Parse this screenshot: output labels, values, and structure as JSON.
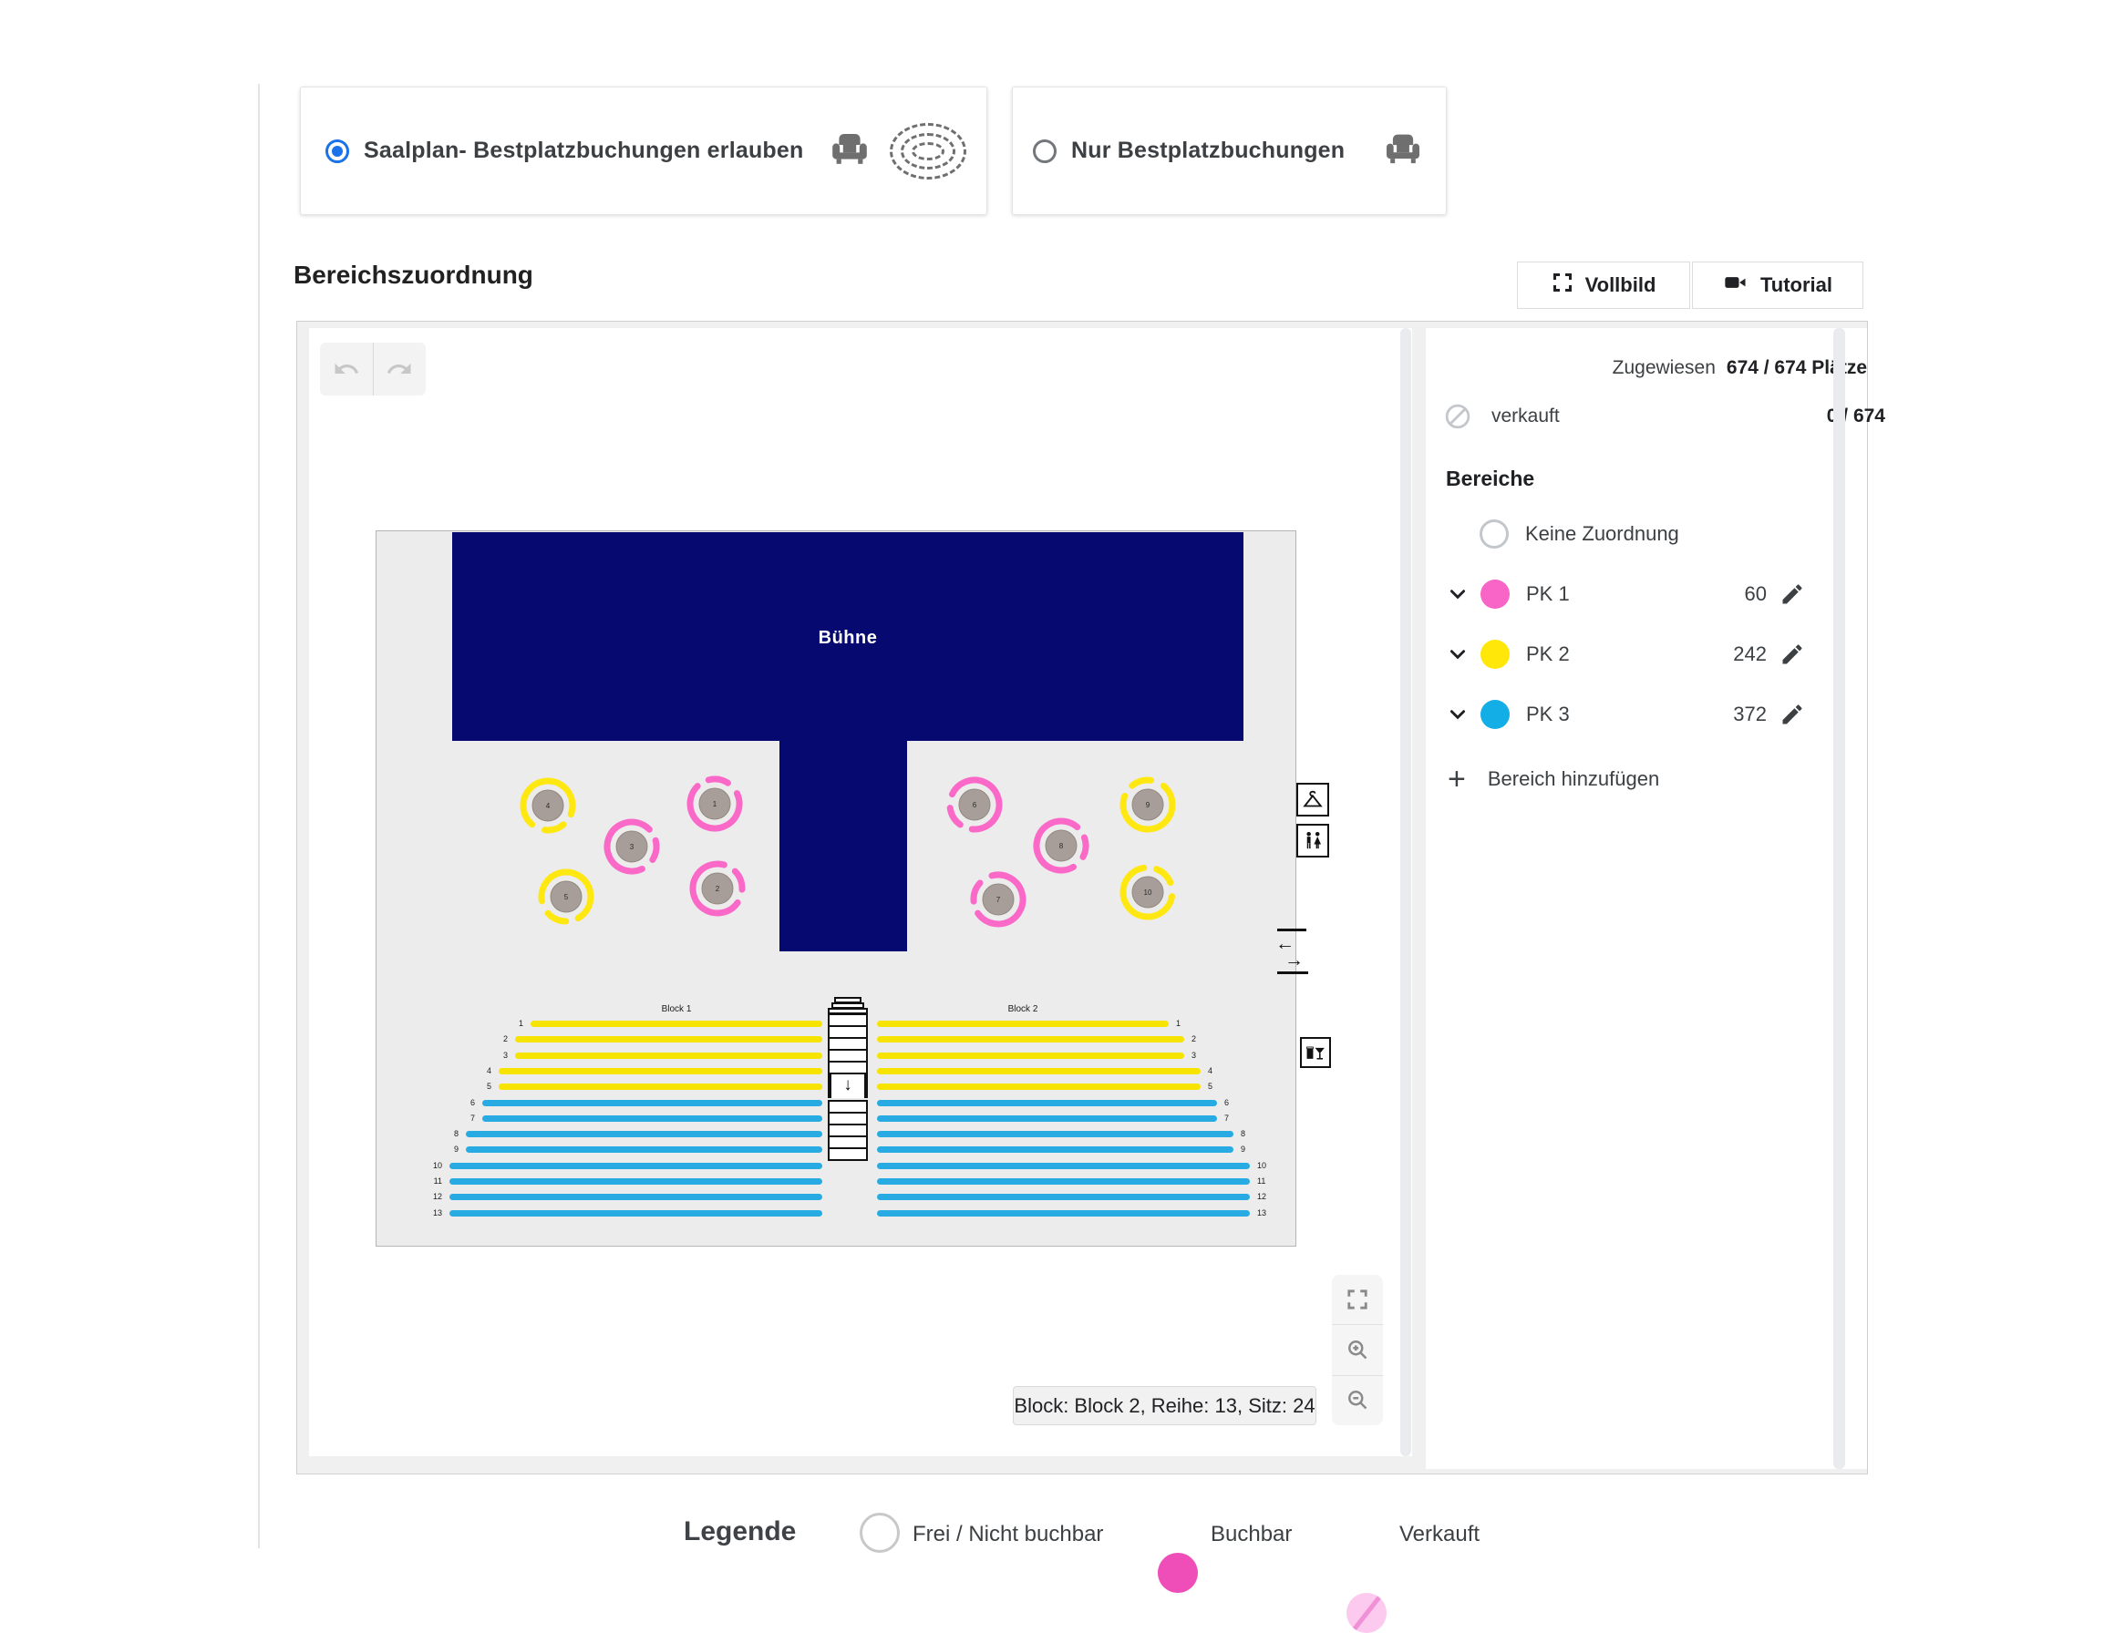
{
  "booking_modes": {
    "option1": {
      "label": "Saalplan- Bestplatzbuchungen erlauben",
      "selected": true
    },
    "option2": {
      "label": "Nur Bestplatzbuchungen",
      "selected": false
    }
  },
  "toolbar": {
    "heading": "Bereichszuordnung",
    "fullscreen_label": "Vollbild",
    "tutorial_label": "Tutorial"
  },
  "sidebar": {
    "assigned_label": "Zugewiesen",
    "assigned_value": "674 / 674 Plätze",
    "sold_label": "verkauft",
    "sold_value": "0 / 674",
    "areas_heading": "Bereiche",
    "no_assignment_label": "Keine Zuordnung",
    "areas": [
      {
        "name": "PK 1",
        "count": "60",
        "color": "#f964c7"
      },
      {
        "name": "PK 2",
        "count": "242",
        "color": "#ffe70a"
      },
      {
        "name": "PK 3",
        "count": "372",
        "color": "#14aee7"
      }
    ],
    "add_area_label": "Bereich hinzufügen"
  },
  "seatmap": {
    "stage_label": "Bühne",
    "blocks": [
      {
        "name": "Block 1"
      },
      {
        "name": "Block 2"
      }
    ],
    "rows": [
      {
        "number": "1",
        "zone": "PK 2",
        "color": "#f6e400"
      },
      {
        "number": "2",
        "zone": "PK 2",
        "color": "#f6e400"
      },
      {
        "number": "3",
        "zone": "PK 2",
        "color": "#f6e400"
      },
      {
        "number": "4",
        "zone": "PK 2",
        "color": "#f6e400"
      },
      {
        "number": "5",
        "zone": "PK 2",
        "color": "#f6e400"
      },
      {
        "number": "6",
        "zone": "PK 3",
        "color": "#28abe2"
      },
      {
        "number": "7",
        "zone": "PK 3",
        "color": "#28abe2"
      },
      {
        "number": "8",
        "zone": "PK 3",
        "color": "#28abe2"
      },
      {
        "number": "9",
        "zone": "PK 3",
        "color": "#28abe2"
      },
      {
        "number": "10",
        "zone": "PK 3",
        "color": "#28abe2"
      },
      {
        "number": "11",
        "zone": "PK 3",
        "color": "#28abe2"
      },
      {
        "number": "12",
        "zone": "PK 3",
        "color": "#28abe2"
      },
      {
        "number": "13",
        "zone": "PK 3",
        "color": "#28abe2"
      }
    ],
    "tables": [
      {
        "number": "1",
        "zone": "PK 1",
        "color": "#fb69c8"
      },
      {
        "number": "2",
        "zone": "PK 1",
        "color": "#fb69c8"
      },
      {
        "number": "3",
        "zone": "PK 1",
        "color": "#fb69c8"
      },
      {
        "number": "4",
        "zone": "PK 2",
        "color": "#ffe712"
      },
      {
        "number": "5",
        "zone": "PK 2",
        "color": "#ffe712"
      },
      {
        "number": "6",
        "zone": "PK 1",
        "color": "#fb69c8"
      },
      {
        "number": "7",
        "zone": "PK 1",
        "color": "#fb69c8"
      },
      {
        "number": "8",
        "zone": "PK 1",
        "color": "#fb69c8"
      },
      {
        "number": "9",
        "zone": "PK 2",
        "color": "#ffe712"
      },
      {
        "number": "10",
        "zone": "PK 2",
        "color": "#ffe712"
      }
    ],
    "tooltip": "Block: Block 2, Reihe: 13, Sitz: 24"
  },
  "legend": {
    "heading": "Legende",
    "items": [
      {
        "label": "Frei / Nicht buchbar",
        "swatch": "outline",
        "color": "#c8c8c8"
      },
      {
        "label": "Buchbar",
        "swatch": "solid",
        "color": "#ef4db7"
      },
      {
        "label": "Verkauft",
        "swatch": "slashed",
        "color": "#fcc9ef",
        "slash_color": "#f090d6"
      }
    ]
  },
  "colors": {
    "stage": "#06096f",
    "plan_background": "#ececec",
    "radio_accent": "#1a73e8",
    "table_top": "#a79e99"
  }
}
